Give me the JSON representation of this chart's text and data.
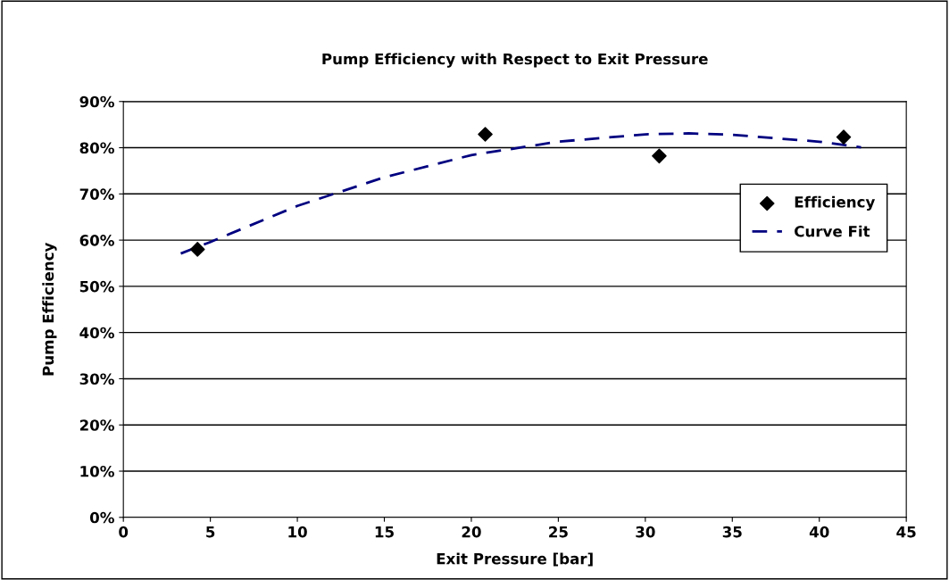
{
  "chart_data": {
    "type": "scatter",
    "title": "Pump Efficiency with Respect to Exit Pressure",
    "xlabel": "Exit Pressure [bar]",
    "ylabel": "Pump Efficiency",
    "series": [
      {
        "name": "Efficiency",
        "color": "#000000",
        "marker": "diamond",
        "x": [
          4.26,
          20.8,
          30.8,
          41.4
        ],
        "values": [
          58.0,
          82.9,
          78.2,
          82.3
        ]
      },
      {
        "name": "Curve Fit",
        "type": "line",
        "color": "#000080",
        "marker": "none",
        "line_style": "dashed",
        "x": [
          3.3,
          5,
          10,
          15,
          20,
          25,
          30,
          32.5,
          35,
          40,
          42.4
        ],
        "values": [
          57.1,
          59.6,
          67.4,
          73.6,
          78.4,
          81.3,
          82.9,
          83.1,
          82.8,
          81.3,
          80.1
        ]
      }
    ],
    "xlim": [
      0,
      45
    ],
    "xticks": [
      0,
      5,
      10,
      15,
      20,
      25,
      30,
      35,
      40,
      45
    ],
    "ylim": [
      0,
      90
    ],
    "yticks": [
      {
        "value": 0,
        "label": "0%"
      },
      {
        "value": 10,
        "label": "10%"
      },
      {
        "value": 20,
        "label": "20%"
      },
      {
        "value": 30,
        "label": "30%"
      },
      {
        "value": 40,
        "label": "40%"
      },
      {
        "value": 50,
        "label": "50%"
      },
      {
        "value": 60,
        "label": "60%"
      },
      {
        "value": 70,
        "label": "70%"
      },
      {
        "value": 80,
        "label": "80%"
      },
      {
        "value": 90,
        "label": "90%"
      }
    ],
    "grid": "y",
    "legend": "right"
  }
}
